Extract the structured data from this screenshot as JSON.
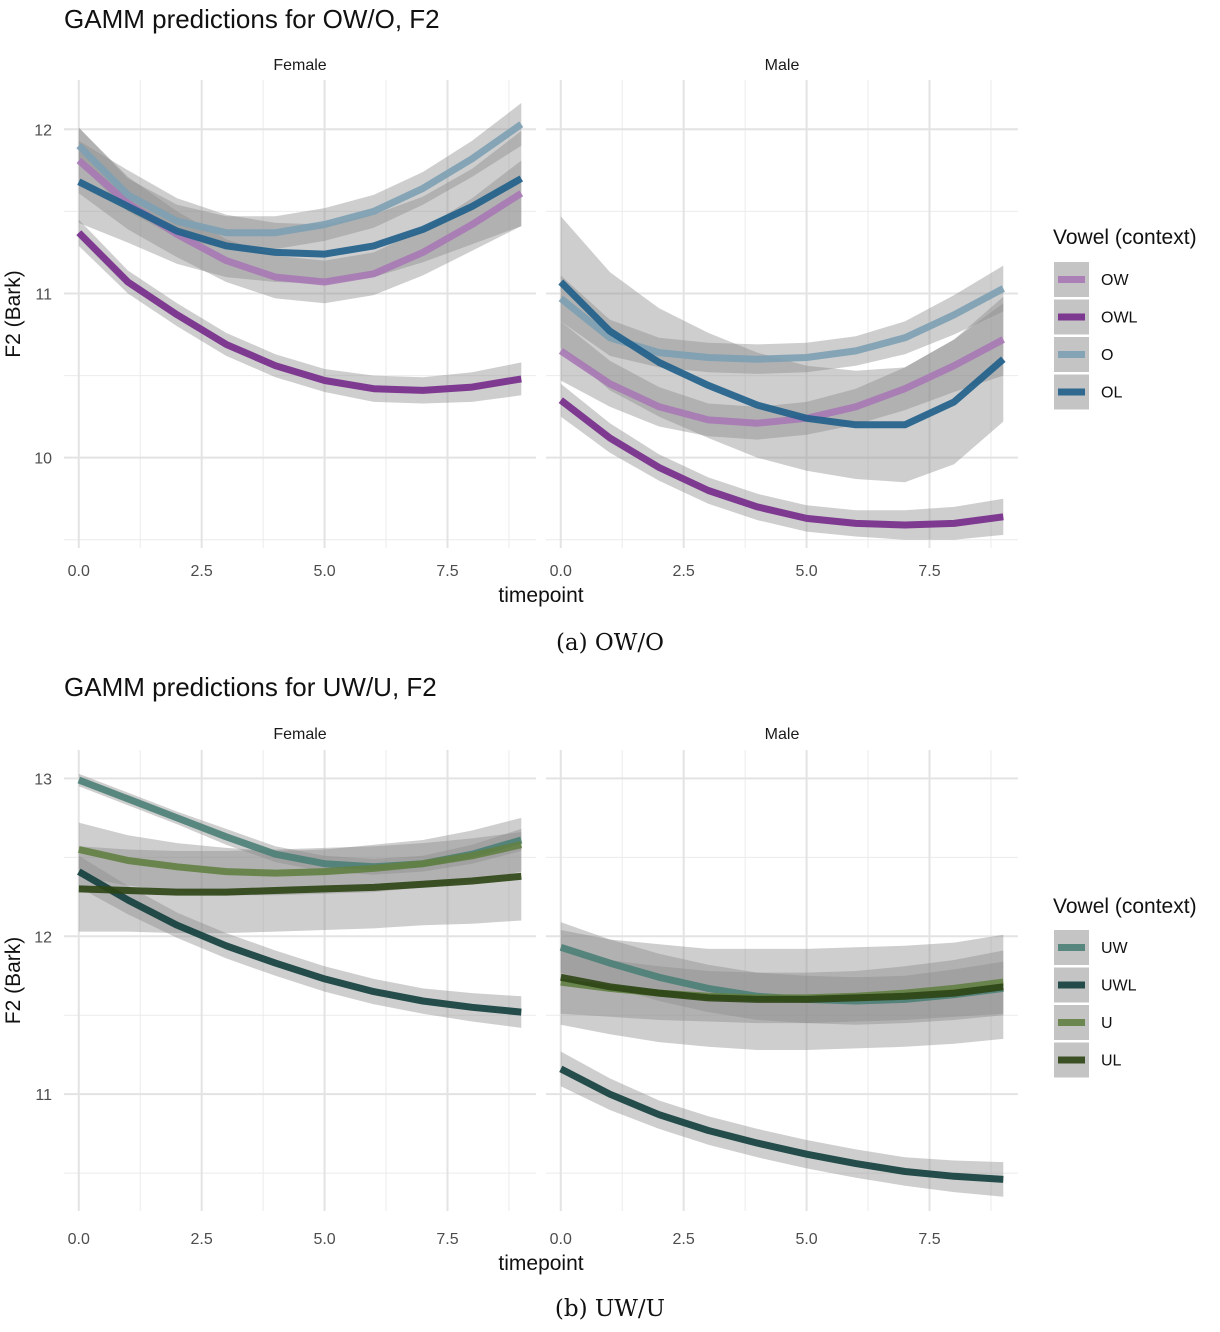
{
  "figure": {
    "captions": [
      "(a) OW/O",
      "(b) UW/U"
    ]
  },
  "chart_data": [
    {
      "type": "line",
      "title": "GAMM predictions for OW/O, F2",
      "xlabel": "timepoint",
      "ylabel": "F2 (Bark)",
      "xlim": [
        -0.3,
        9.3
      ],
      "ylim": [
        9.45,
        12.3
      ],
      "x_ticks": [
        0,
        2.5,
        5,
        7.5
      ],
      "x_tick_labels": [
        "0.0",
        "2.5",
        "5.0",
        "7.5"
      ],
      "y_ticks": [
        10,
        11,
        12
      ],
      "y_tick_labels": [
        "10",
        "11",
        "12"
      ],
      "grid": true,
      "legend_title": "Vowel (context)",
      "legend_position": "right",
      "facets": [
        "Female",
        "Male"
      ],
      "x": [
        0,
        1,
        2,
        3,
        4,
        5,
        6,
        7,
        8,
        9
      ],
      "series": [
        {
          "name": "OW",
          "color": "#a779b5",
          "values": {
            "Female": [
              11.81,
              11.55,
              11.36,
              11.2,
              11.1,
              11.07,
              11.12,
              11.25,
              11.42,
              11.61
            ],
            "Male": [
              10.65,
              10.45,
              10.31,
              10.23,
              10.21,
              10.24,
              10.31,
              10.42,
              10.56,
              10.72
            ]
          },
          "ci": {
            "Female": [
              0.2,
              0.16,
              0.14,
              0.13,
              0.13,
              0.13,
              0.13,
              0.14,
              0.16,
              0.2
            ],
            "Male": [
              0.18,
              0.14,
              0.12,
              0.1,
              0.1,
              0.1,
              0.11,
              0.13,
              0.16,
              0.22
            ]
          }
        },
        {
          "name": "OWL",
          "color": "#762a8a",
          "values": {
            "Female": [
              11.37,
              11.07,
              10.87,
              10.69,
              10.56,
              10.47,
              10.42,
              10.41,
              10.43,
              10.48
            ],
            "Male": [
              10.35,
              10.12,
              9.94,
              9.8,
              9.7,
              9.63,
              9.6,
              9.59,
              9.6,
              9.64
            ]
          },
          "ci": {
            "Female": [
              0.08,
              0.07,
              0.07,
              0.07,
              0.07,
              0.07,
              0.08,
              0.08,
              0.09,
              0.1
            ],
            "Male": [
              0.1,
              0.09,
              0.08,
              0.08,
              0.08,
              0.08,
              0.08,
              0.09,
              0.1,
              0.11
            ]
          }
        },
        {
          "name": "O",
          "color": "#7da0b3",
          "values": {
            "Female": [
              11.9,
              11.6,
              11.44,
              11.37,
              11.37,
              11.42,
              11.5,
              11.64,
              11.82,
              12.03
            ],
            "Male": [
              10.97,
              10.73,
              10.64,
              10.61,
              10.6,
              10.61,
              10.65,
              10.73,
              10.87,
              11.03
            ]
          },
          "ci": {
            "Female": [
              0.11,
              0.1,
              0.1,
              0.1,
              0.1,
              0.1,
              0.1,
              0.1,
              0.11,
              0.13
            ],
            "Male": [
              0.14,
              0.11,
              0.09,
              0.09,
              0.09,
              0.09,
              0.09,
              0.1,
              0.12,
              0.14
            ]
          }
        },
        {
          "name": "OL",
          "color": "#1f5f8b",
          "values": {
            "Female": [
              11.68,
              11.53,
              11.38,
              11.29,
              11.25,
              11.24,
              11.29,
              11.39,
              11.53,
              11.7
            ],
            "Male": [
              11.07,
              10.77,
              10.58,
              10.44,
              10.32,
              10.24,
              10.2,
              10.2,
              10.34,
              10.6
            ]
          },
          "ci": {
            "Female": [
              0.25,
              0.22,
              0.2,
              0.19,
              0.18,
              0.18,
              0.19,
              0.2,
              0.23,
              0.29
            ],
            "Male": [
              0.4,
              0.36,
              0.33,
              0.32,
              0.32,
              0.32,
              0.33,
              0.35,
              0.38,
              0.38
            ]
          }
        }
      ]
    },
    {
      "type": "line",
      "title": "GAMM predictions for UW/U, F2",
      "xlabel": "timepoint",
      "ylabel": "F2 (Bark)",
      "xlim": [
        -0.3,
        9.3
      ],
      "ylim": [
        10.26,
        13.18
      ],
      "x_ticks": [
        0,
        2.5,
        5,
        7.5
      ],
      "x_tick_labels": [
        "0.0",
        "2.5",
        "5.0",
        "7.5"
      ],
      "y_ticks": [
        11,
        12,
        13
      ],
      "y_tick_labels": [
        "11",
        "12",
        "13"
      ],
      "grid": true,
      "legend_title": "Vowel (context)",
      "legend_position": "right",
      "facets": [
        "Female",
        "Male"
      ],
      "x": [
        0,
        1,
        2,
        3,
        4,
        5,
        6,
        7,
        8,
        9
      ],
      "series": [
        {
          "name": "UW",
          "color": "#4a8075",
          "values": {
            "Female": [
              12.99,
              12.87,
              12.75,
              12.63,
              12.52,
              12.46,
              12.44,
              12.46,
              12.52,
              12.61
            ],
            "Male": [
              11.93,
              11.83,
              11.74,
              11.67,
              11.62,
              11.6,
              11.59,
              11.6,
              11.63,
              11.67
            ]
          },
          "ci": {
            "Female": [
              0.04,
              0.04,
              0.04,
              0.05,
              0.05,
              0.05,
              0.05,
              0.05,
              0.06,
              0.07
            ],
            "Male": [
              0.16,
              0.15,
              0.15,
              0.15,
              0.15,
              0.15,
              0.15,
              0.15,
              0.16,
              0.17
            ]
          }
        },
        {
          "name": "UWL",
          "color": "#123e3c",
          "values": {
            "Female": [
              12.41,
              12.23,
              12.07,
              11.94,
              11.83,
              11.73,
              11.65,
              11.59,
              11.55,
              11.52
            ],
            "Male": [
              11.16,
              11.0,
              10.87,
              10.77,
              10.69,
              10.62,
              10.56,
              10.51,
              10.48,
              10.46
            ]
          },
          "ci": {
            "Female": [
              0.1,
              0.09,
              0.08,
              0.08,
              0.08,
              0.08,
              0.08,
              0.08,
              0.09,
              0.1
            ],
            "Male": [
              0.11,
              0.1,
              0.09,
              0.09,
              0.09,
              0.09,
              0.09,
              0.09,
              0.1,
              0.11
            ]
          }
        },
        {
          "name": "U",
          "color": "#627f42",
          "values": {
            "Female": [
              12.55,
              12.48,
              12.44,
              12.41,
              12.4,
              12.41,
              12.43,
              12.46,
              12.51,
              12.58
            ],
            "Male": [
              11.71,
              11.67,
              11.64,
              11.62,
              11.61,
              11.61,
              11.62,
              11.64,
              11.67,
              11.71
            ]
          },
          "ci": {
            "Female": [
              0.17,
              0.16,
              0.15,
              0.15,
              0.14,
              0.14,
              0.15,
              0.15,
              0.16,
              0.17
            ],
            "Male": [
              0.2,
              0.18,
              0.17,
              0.16,
              0.16,
              0.16,
              0.16,
              0.17,
              0.18,
              0.2
            ]
          }
        },
        {
          "name": "UL",
          "color": "#2c4414",
          "values": {
            "Female": [
              12.3,
              12.29,
              12.28,
              12.28,
              12.29,
              12.3,
              12.31,
              12.33,
              12.35,
              12.38
            ],
            "Male": [
              11.74,
              11.68,
              11.64,
              11.61,
              11.6,
              11.6,
              11.61,
              11.62,
              11.64,
              11.68
            ]
          },
          "ci": {
            "Female": [
              0.27,
              0.26,
              0.26,
              0.26,
              0.26,
              0.26,
              0.26,
              0.26,
              0.27,
              0.28
            ],
            "Male": [
              0.3,
              0.3,
              0.31,
              0.31,
              0.32,
              0.32,
              0.32,
              0.32,
              0.32,
              0.33
            ]
          }
        }
      ]
    }
  ]
}
